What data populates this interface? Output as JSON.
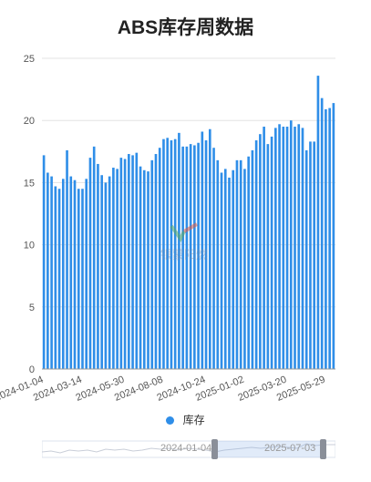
{
  "title": "ABS库存周数据",
  "legend_label": "库存",
  "series_color": "#2f8ee8",
  "watermark_text": "银蒙阳燃",
  "zoom": {
    "start_label": "2024-01-04",
    "end_label": "2025-07-03"
  },
  "chart_data": {
    "type": "bar",
    "ylim": [
      0,
      25
    ],
    "yticks": [
      0,
      5,
      10,
      15,
      20,
      25
    ],
    "xtick_labels": [
      "2024-01-04",
      "2024-03-14",
      "2024-05-30",
      "2024-08-08",
      "2024-10-24",
      "2025-01-02",
      "2025-03-20",
      "2025-05-29"
    ],
    "xtick_indices": [
      0,
      10,
      21,
      31,
      42,
      52,
      63,
      73
    ],
    "series": [
      {
        "name": "库存",
        "values": [
          17.2,
          15.8,
          15.5,
          14.7,
          14.5,
          15.3,
          17.6,
          15.5,
          15.2,
          14.5,
          14.5,
          15.3,
          17.0,
          17.9,
          16.5,
          15.6,
          15.0,
          15.5,
          16.2,
          16.1,
          17.0,
          16.9,
          17.3,
          17.2,
          17.4,
          16.3,
          16.0,
          15.9,
          16.8,
          17.3,
          17.8,
          18.5,
          18.6,
          18.4,
          18.5,
          19.0,
          17.9,
          17.9,
          18.1,
          18.0,
          18.2,
          19.1,
          18.4,
          19.3,
          17.8,
          16.8,
          15.8,
          16.1,
          15.4,
          16.0,
          16.8,
          16.8,
          16.1,
          17.1,
          17.6,
          18.4,
          18.9,
          19.5,
          18.1,
          18.7,
          19.4,
          19.7,
          19.5,
          19.5,
          20.0,
          19.5,
          19.7,
          19.4,
          17.6,
          18.3,
          18.3,
          23.6,
          21.8,
          20.9,
          21.0,
          21.4
        ]
      }
    ]
  }
}
